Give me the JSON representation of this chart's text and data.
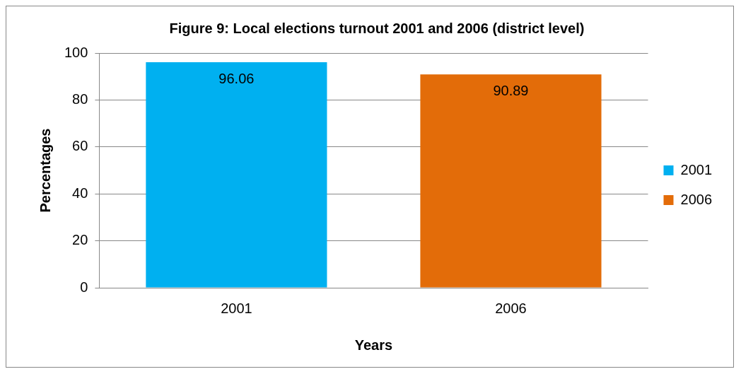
{
  "chart_data": {
    "type": "bar",
    "title": "Figure 9: Local elections turnout 2001 and 2006 (district level)",
    "xlabel": "Years",
    "ylabel": "Percentages",
    "categories": [
      "2001",
      "2006"
    ],
    "series": [
      {
        "name": "2001",
        "color": "#00b0f0",
        "values": [
          96.06,
          null
        ]
      },
      {
        "name": "2006",
        "color": "#e36c09",
        "values": [
          null,
          90.89
        ]
      }
    ],
    "ylim": [
      0,
      100
    ],
    "yticks": [
      0,
      20,
      40,
      60,
      80,
      100
    ],
    "grid": "y",
    "legend": "right",
    "data_labels": true
  }
}
